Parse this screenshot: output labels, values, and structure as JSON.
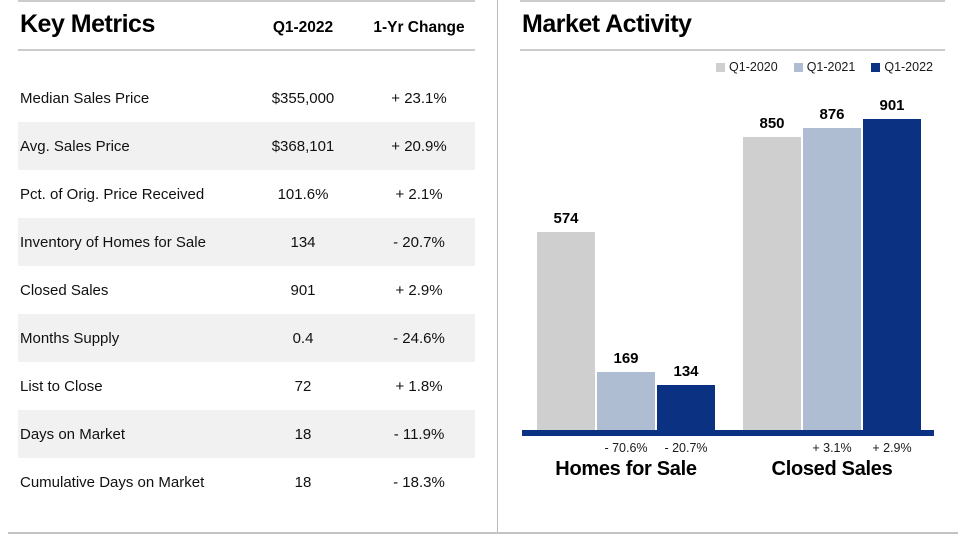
{
  "key_metrics": {
    "title": "Key Metrics",
    "col_quarter": "Q1-2022",
    "col_change": "1-Yr Change",
    "rows": [
      {
        "label": "Median Sales Price",
        "value": "$355,000",
        "change": "+ 23.1%"
      },
      {
        "label": "Avg. Sales Price",
        "value": "$368,101",
        "change": "+ 20.9%"
      },
      {
        "label": "Pct. of Orig. Price Received",
        "value": "101.6%",
        "change": "+ 2.1%"
      },
      {
        "label": "Inventory of Homes for Sale",
        "value": "134",
        "change": "- 20.7%"
      },
      {
        "label": "Closed Sales",
        "value": "901",
        "change": "+ 2.9%"
      },
      {
        "label": "Months Supply",
        "value": "0.4",
        "change": "- 24.6%"
      },
      {
        "label": "List to Close",
        "value": "72",
        "change": "+ 1.8%"
      },
      {
        "label": "Days on Market",
        "value": "18",
        "change": "- 11.9%"
      },
      {
        "label": "Cumulative Days on Market",
        "value": "18",
        "change": "- 18.3%"
      }
    ]
  },
  "market_activity": {
    "title": "Market Activity"
  },
  "colors": {
    "q1_2020": "#cfcfcf",
    "q1_2021": "#afbdd3",
    "q1_2022": "#0b3182",
    "axis": "#0b3182",
    "row_stripe": "#f1f1f1"
  },
  "chart_data": {
    "type": "bar",
    "title": "Market Activity",
    "categories": [
      "Homes for Sale",
      "Closed Sales"
    ],
    "series": [
      {
        "name": "Q1-2020",
        "color": "#cfcfcf",
        "values": [
          574,
          850
        ]
      },
      {
        "name": "Q1-2021",
        "color": "#afbdd3",
        "values": [
          169,
          876
        ]
      },
      {
        "name": "Q1-2022",
        "color": "#0b3182",
        "values": [
          134,
          901
        ]
      }
    ],
    "value_labels": [
      [
        574,
        169,
        134
      ],
      [
        850,
        876,
        901
      ]
    ],
    "change_labels": [
      [
        "",
        "- 70.6%",
        "- 20.7%"
      ],
      [
        "",
        "+ 3.1%",
        "+ 2.9%"
      ]
    ],
    "ylim": [
      0,
      920
    ],
    "grid": false,
    "legend_position": "top-right",
    "legend": [
      "Q1-2020",
      "Q1-2021",
      "Q1-2022"
    ],
    "xlabel": "",
    "ylabel": ""
  }
}
